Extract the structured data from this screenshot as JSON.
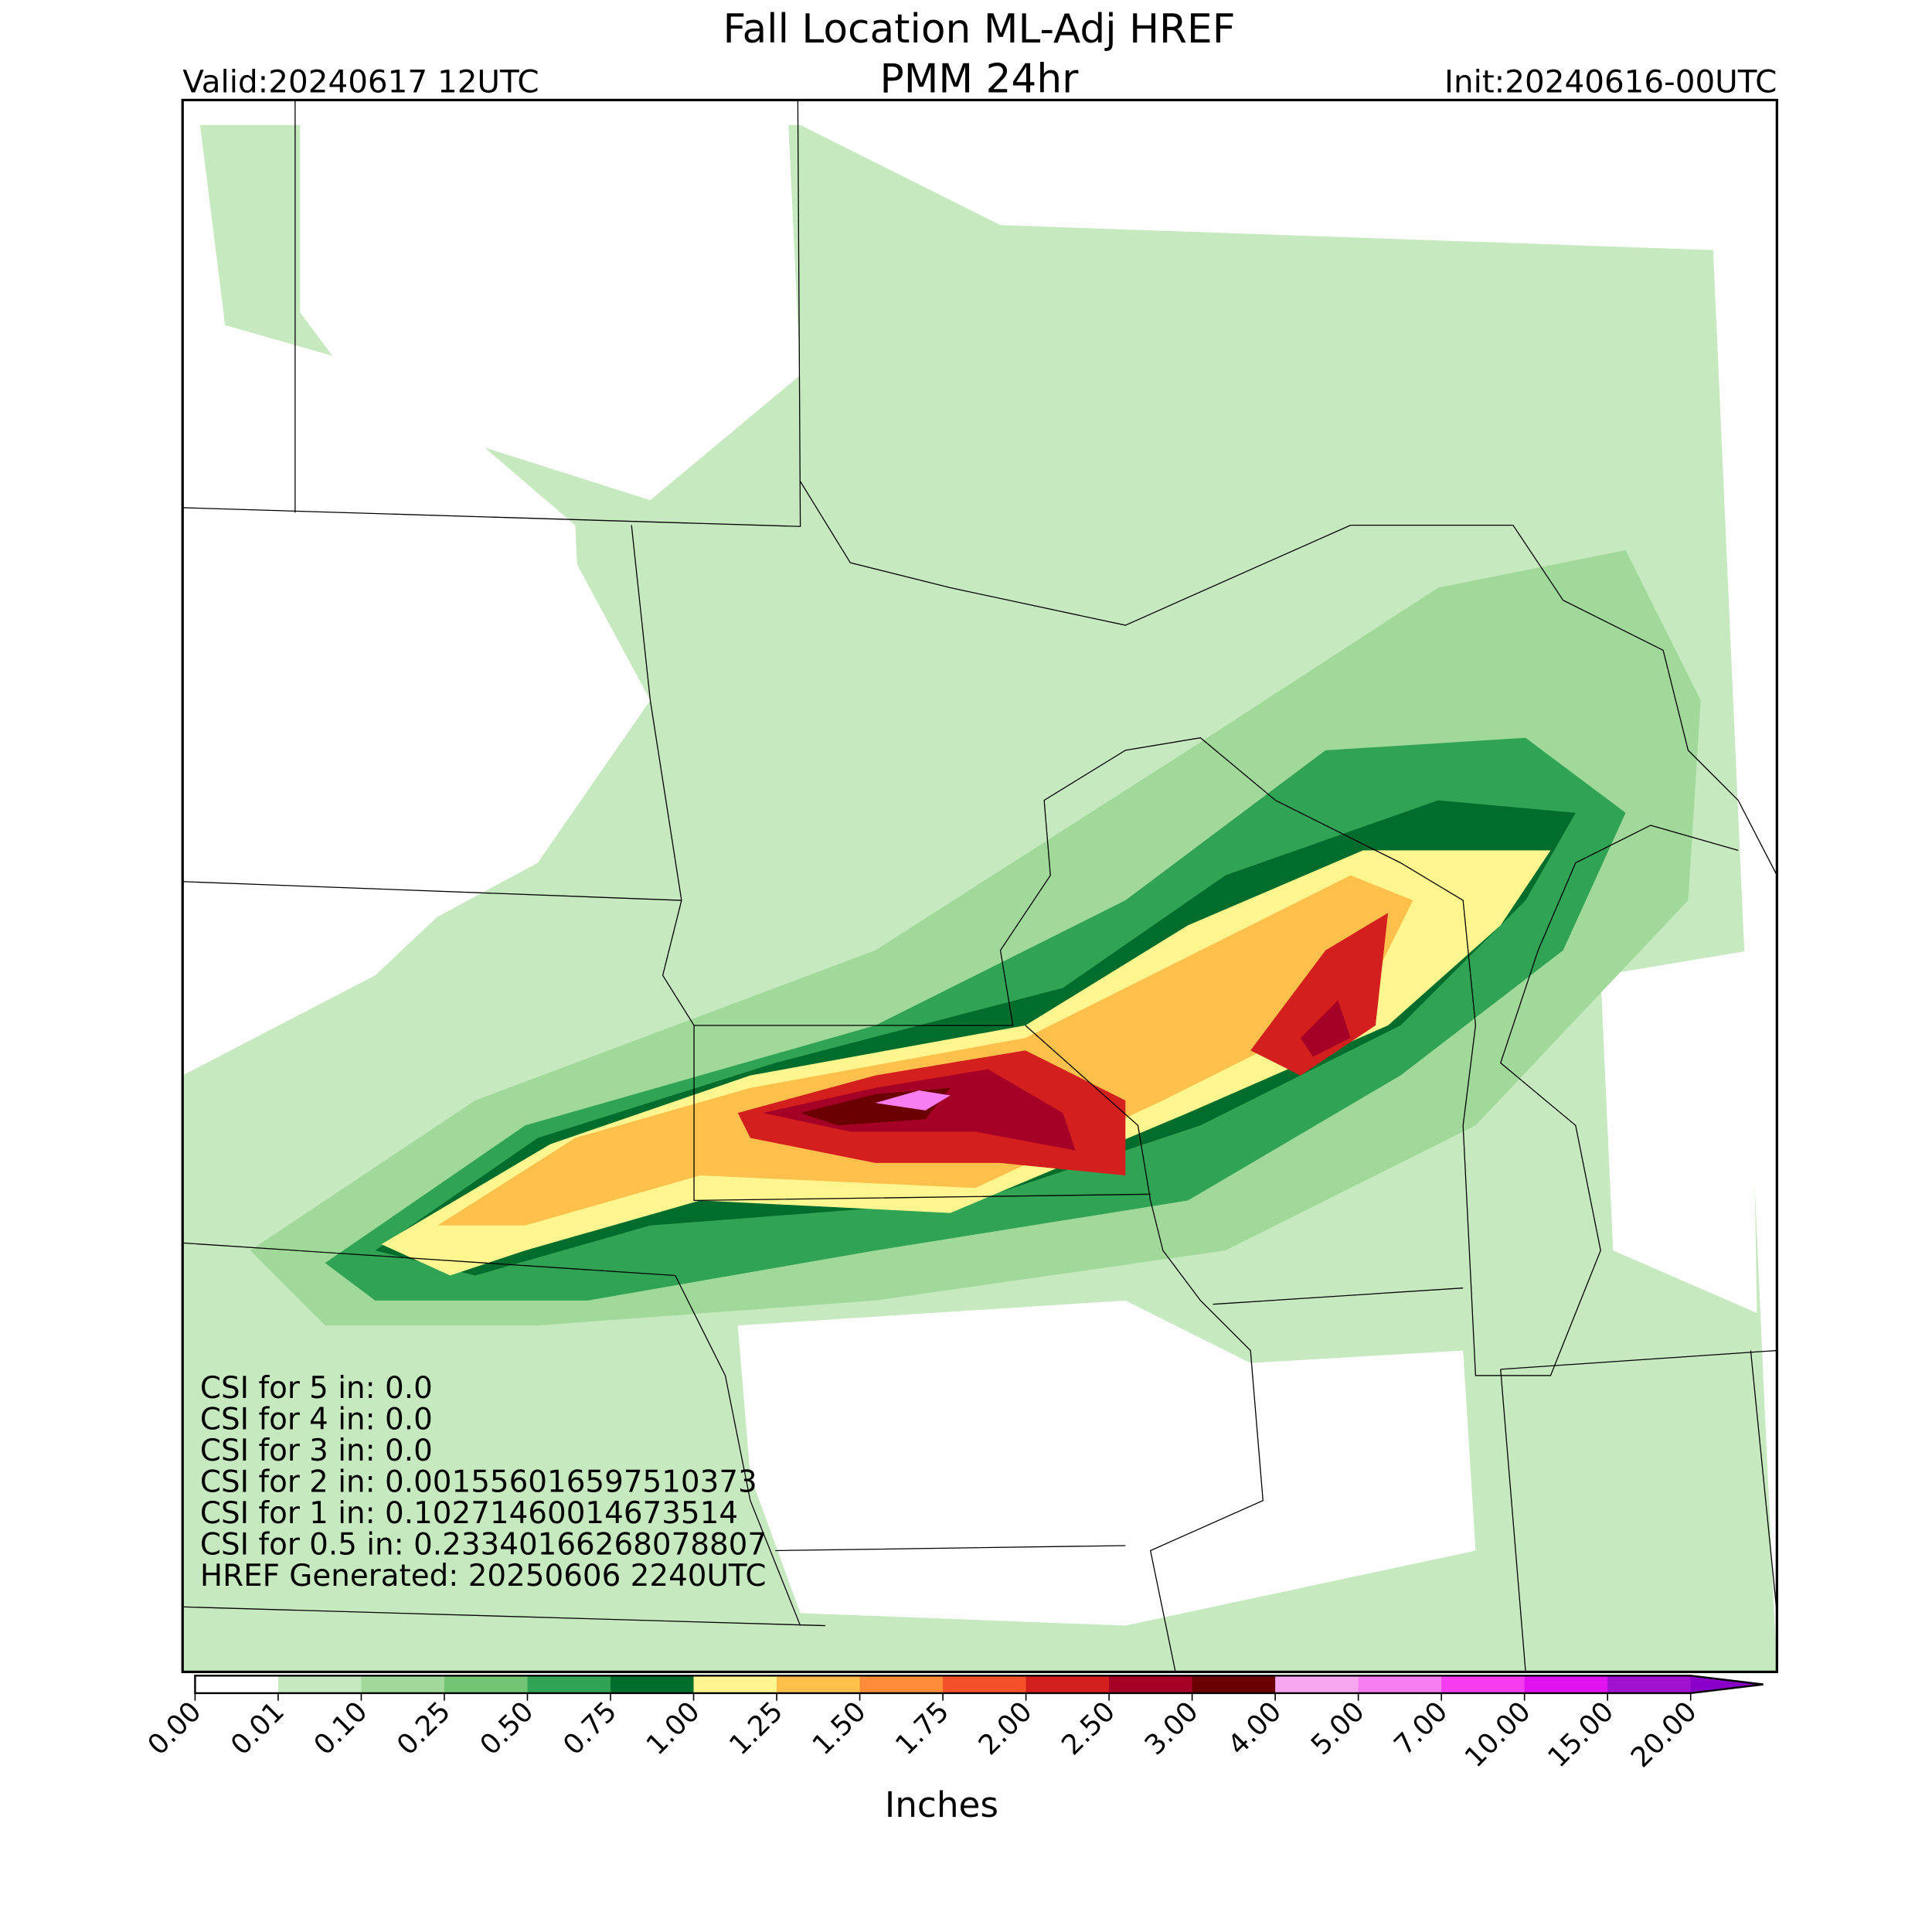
{
  "header": {
    "title": "Fall Location ML-Adj HREF",
    "subtitle": "PMM 24hr",
    "valid": "Valid:20240617 12UTC",
    "init": "Init:20240616-00UTC"
  },
  "annotations": [
    "CSI for 5 in: 0.0",
    "CSI for 4 in: 0.0",
    "CSI for 3 in: 0.0",
    "CSI for 2 in: 0.001556016597510373",
    "CSI for 1 in: 0.10271460014673514",
    "CSI for 0.5 in: 0.23340166268078807",
    "HREF Generated: 20250606 2240UTC"
  ],
  "colorbar": {
    "label": "Inches",
    "ticks": [
      "0.00",
      "0.01",
      "0.10",
      "0.25",
      "0.50",
      "0.75",
      "1.00",
      "1.25",
      "1.50",
      "1.75",
      "2.00",
      "2.50",
      "3.00",
      "4.00",
      "5.00",
      "7.00",
      "10.00",
      "15.00",
      "20.00"
    ],
    "colors": [
      "#ffffff",
      "#c7e9c0",
      "#a1d99b",
      "#74c476",
      "#31a354",
      "#006d2c",
      "#fff68f",
      "#ffc04c",
      "#ff8c3a",
      "#f4502a",
      "#d41f1f",
      "#a50026",
      "#6b0000",
      "#f7a6f0",
      "#f77ef0",
      "#f53cf0",
      "#e012f0",
      "#a012d0"
    ],
    "extend_color": "#8a00c8"
  }
}
